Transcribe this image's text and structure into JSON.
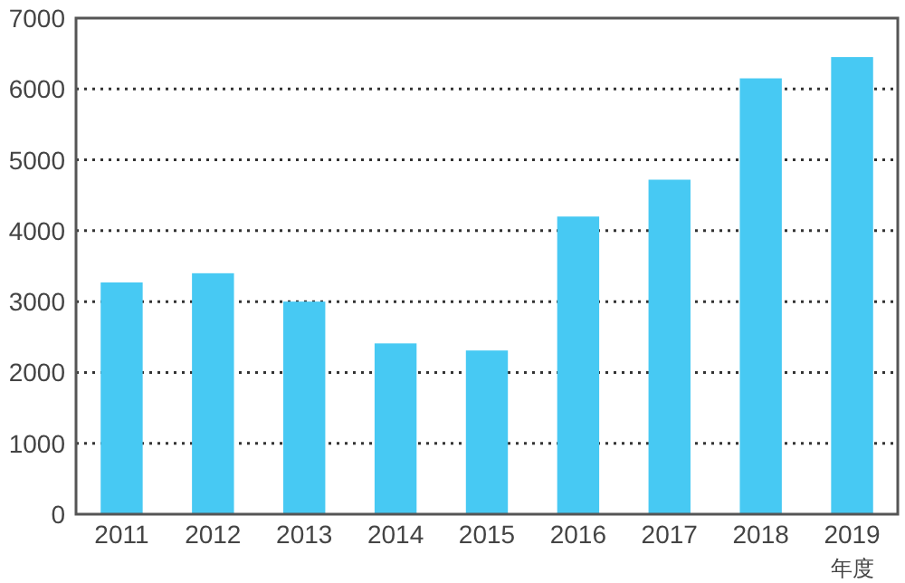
{
  "chart_data": {
    "type": "bar",
    "xlabel": "年度",
    "categories": [
      "2011",
      "2012",
      "2013",
      "2014",
      "2015",
      "2016",
      "2017",
      "2018",
      "2019"
    ],
    "values": [
      3270,
      3400,
      3000,
      2410,
      2310,
      4200,
      4720,
      6150,
      6450
    ],
    "color": "#47c9f3",
    "ylim": [
      0,
      7000
    ],
    "yticks": [
      0,
      1000,
      2000,
      3000,
      4000,
      5000,
      6000,
      7000
    ],
    "grid": "y"
  }
}
